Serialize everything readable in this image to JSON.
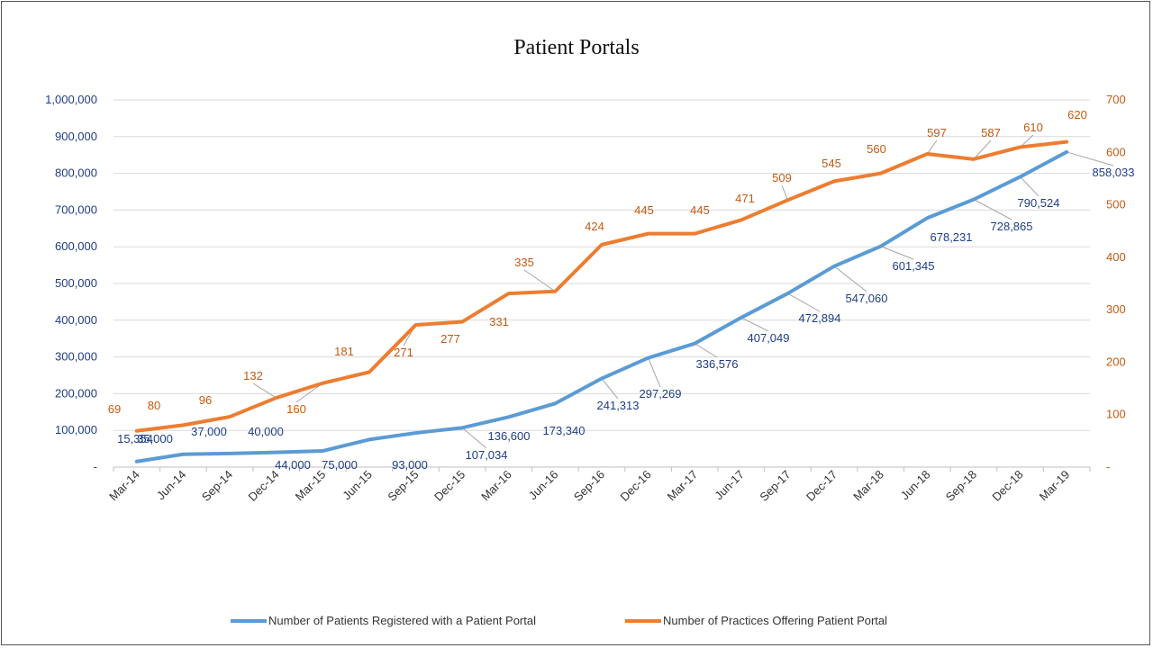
{
  "chart_data": {
    "type": "line",
    "title": "Patient Portals",
    "categories": [
      "Mar-14",
      "Jun-14",
      "Sep-14",
      "Dec-14",
      "Mar-15",
      "Jun-15",
      "Sep-15",
      "Dec-15",
      "Mar-16",
      "Jun-16",
      "Sep-16",
      "Dec-16",
      "Mar-17",
      "Jun-17",
      "Sep-17",
      "Dec-17",
      "Mar-18",
      "Jun-18",
      "Sep-18",
      "Dec-18",
      "Mar-19"
    ],
    "series": [
      {
        "name": "Number of Patients Registered with a Patient Portal",
        "axis": "left",
        "color": "#5b9bd5",
        "label_color": "#1f3c88",
        "values": [
          15354,
          35000,
          37000,
          40000,
          44000,
          75000,
          93000,
          107034,
          136600,
          173340,
          241313,
          297269,
          336576,
          407049,
          472894,
          547060,
          601345,
          678231,
          728865,
          790524,
          858033
        ],
        "labels": [
          "15,354",
          "35,000",
          "37,000",
          "40,000",
          "44,000",
          "75,000",
          "93,000",
          "107,034",
          "136,600",
          "173,340",
          "241,313",
          "297,269",
          "336,576",
          "407,049",
          "472,894",
          "547,060",
          "601,345",
          "678,231",
          "728,865",
          "790,524",
          "858,033"
        ]
      },
      {
        "name": "Number of Practices Offering Patient Portal",
        "axis": "right",
        "color": "#ed7d31",
        "label_color": "#c55a11",
        "values": [
          69,
          80,
          96,
          132,
          160,
          181,
          271,
          277,
          331,
          335,
          424,
          445,
          445,
          471,
          509,
          545,
          560,
          597,
          587,
          610,
          620
        ],
        "labels": [
          "69",
          "80",
          "96",
          "132",
          "160",
          "181",
          "271",
          "277",
          "331",
          "335",
          "424",
          "445",
          "445",
          "471",
          "509",
          "545",
          "560",
          "597",
          "587",
          "610",
          "620"
        ]
      }
    ],
    "y_left": {
      "range": [
        0,
        1000000
      ],
      "ticks": [
        0,
        100000,
        200000,
        300000,
        400000,
        500000,
        600000,
        700000,
        800000,
        900000,
        1000000
      ],
      "tick_labels": [
        "-",
        "100,000",
        "200,000",
        "300,000",
        "400,000",
        "500,000",
        "600,000",
        "700,000",
        "800,000",
        "900,000",
        "1,000,000"
      ]
    },
    "y_right": {
      "range": [
        0,
        700
      ],
      "ticks": [
        0,
        100,
        200,
        300,
        400,
        500,
        600,
        700
      ],
      "tick_labels": [
        "-",
        "100",
        "200",
        "300",
        "400",
        "500",
        "600",
        "700"
      ]
    },
    "grid": true,
    "legend_position": "bottom"
  }
}
